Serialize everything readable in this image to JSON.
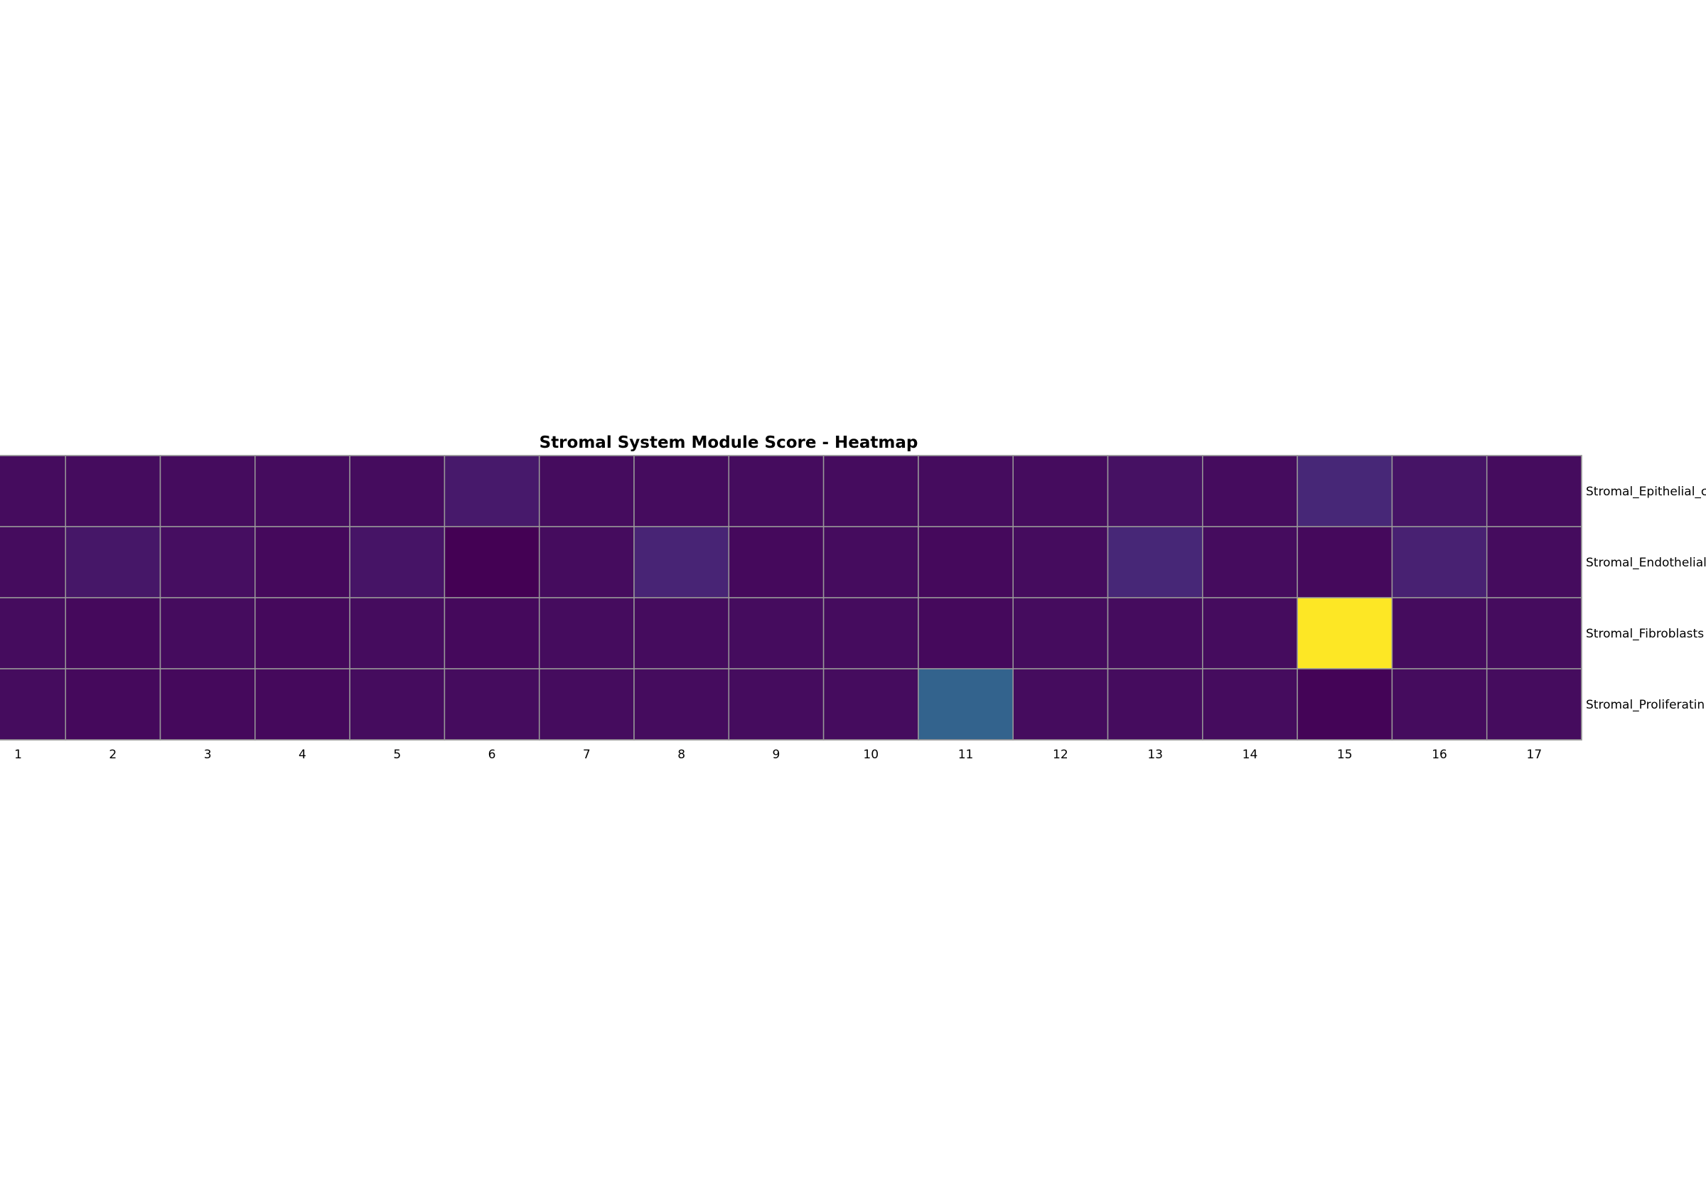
{
  "chart_data": {
    "type": "heatmap",
    "title": "Stromal System Module Score - Heatmap",
    "xlabel": "",
    "ylabel": "",
    "x_categories": [
      "1",
      "2",
      "3",
      "4",
      "5",
      "6",
      "7",
      "8",
      "9",
      "10",
      "11",
      "12",
      "13",
      "14",
      "15",
      "16",
      "17"
    ],
    "y_categories": [
      "Stromal_Epithelial_c",
      "Stromal_Endothelial",
      "Stromal_Fibroblasts",
      "Stromal_Proliferatin"
    ],
    "values": [
      [
        0.04,
        0.04,
        0.04,
        0.04,
        0.04,
        0.09,
        0.04,
        0.04,
        0.04,
        0.04,
        0.04,
        0.04,
        0.06,
        0.04,
        0.14,
        0.07,
        0.04
      ],
      [
        0.04,
        0.08,
        0.05,
        0.03,
        0.07,
        0.0,
        0.04,
        0.13,
        0.03,
        0.04,
        0.03,
        0.04,
        0.14,
        0.04,
        0.03,
        0.12,
        0.04
      ],
      [
        0.04,
        0.03,
        0.04,
        0.03,
        0.04,
        0.03,
        0.04,
        0.04,
        0.04,
        0.04,
        0.03,
        0.04,
        0.04,
        0.04,
        1.0,
        0.04,
        0.04
      ],
      [
        0.04,
        0.03,
        0.03,
        0.03,
        0.04,
        0.04,
        0.04,
        0.04,
        0.04,
        0.04,
        0.4,
        0.04,
        0.04,
        0.04,
        0.01,
        0.04,
        0.04
      ]
    ],
    "colormap": "viridis",
    "grid_color": "#999999",
    "colorbar": false
  }
}
